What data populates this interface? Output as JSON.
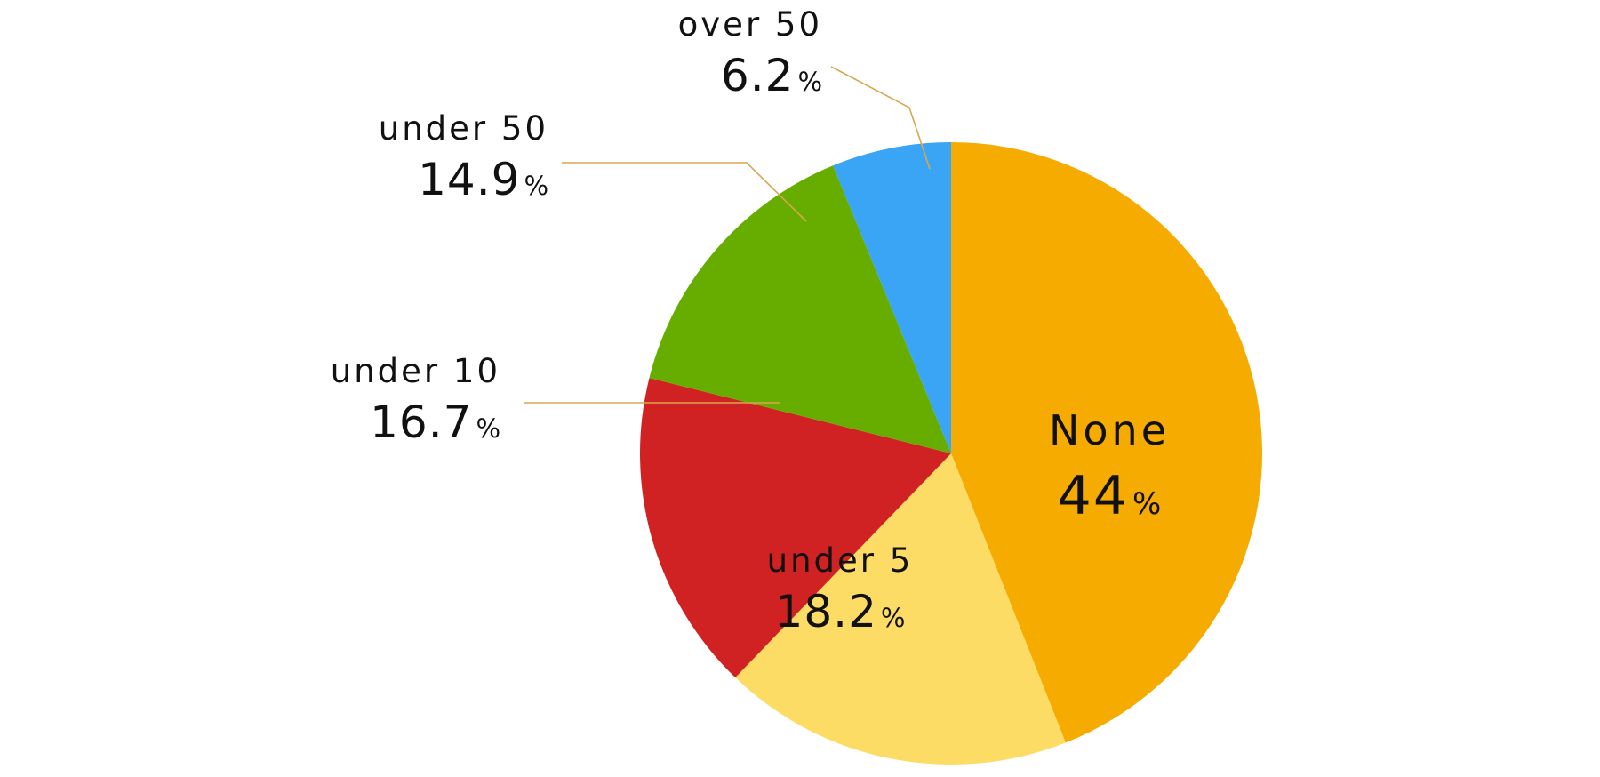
{
  "chart_data": {
    "type": "pie",
    "title": "",
    "start_angle_deg": 0,
    "direction": "clockwise",
    "slices": [
      {
        "label": "None",
        "value": 44,
        "display": "44",
        "unit": "%",
        "color": "#F5AB00",
        "label_style": "inside"
      },
      {
        "label": "under 5",
        "value": 18.2,
        "display": "18.2",
        "unit": "%",
        "color": "#FDDC66",
        "label_style": "inside"
      },
      {
        "label": "under 10",
        "value": 16.7,
        "display": "16.7",
        "unit": "%",
        "color": "#D12223",
        "label_style": "callout"
      },
      {
        "label": "under 50",
        "value": 14.9,
        "display": "14.9",
        "unit": "%",
        "color": "#66AD00",
        "label_style": "callout"
      },
      {
        "label": "over 50",
        "value": 6.2,
        "display": "6.2",
        "unit": "%",
        "color": "#3AA5F5",
        "label_style": "callout"
      }
    ],
    "leader_line_color": "#D9A650",
    "legend": "none"
  }
}
